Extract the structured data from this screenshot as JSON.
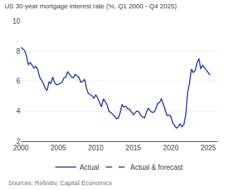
{
  "chart_data": {
    "type": "line",
    "title": "US 30-year mortgage interest rate (%, Q1 2000 - Q4 2025)",
    "annotations": [
      "Sources: Refinitiv, Capital Economics"
    ],
    "xlim": [
      2000.0,
      2026.25
    ],
    "xticks": [
      2000,
      2005,
      2010,
      2015,
      2020,
      2025
    ],
    "ylim": [
      2,
      10
    ],
    "yticks": [
      2,
      4,
      6,
      8,
      10
    ],
    "grid": "y",
    "legend": "bottom",
    "series": [
      {
        "name": "Actual",
        "color": "#2929a8",
        "line_style": "solid",
        "x": [
          2000.0,
          2000.25,
          2000.5,
          2000.75,
          2001.0,
          2001.25,
          2001.5,
          2001.75,
          2002.0,
          2002.25,
          2002.5,
          2002.75,
          2003.0,
          2003.25,
          2003.5,
          2003.75,
          2004.0,
          2004.25,
          2004.5,
          2004.75,
          2005.0,
          2005.25,
          2005.5,
          2005.75,
          2006.0,
          2006.25,
          2006.5,
          2006.75,
          2007.0,
          2007.25,
          2007.5,
          2007.75,
          2008.0,
          2008.25,
          2008.5,
          2008.75,
          2009.0,
          2009.25,
          2009.5,
          2009.75,
          2010.0,
          2010.25,
          2010.5,
          2010.75,
          2011.0,
          2011.25,
          2011.5,
          2011.75,
          2012.0,
          2012.25,
          2012.5,
          2012.75,
          2013.0,
          2013.25,
          2013.5,
          2013.75,
          2014.0,
          2014.25,
          2014.5,
          2014.75,
          2015.0,
          2015.25,
          2015.5,
          2015.75,
          2016.0,
          2016.25,
          2016.5,
          2016.75,
          2017.0,
          2017.25,
          2017.5,
          2017.75,
          2018.0,
          2018.25,
          2018.5,
          2018.75,
          2019.0,
          2019.25,
          2019.5,
          2019.75,
          2020.0,
          2020.25,
          2020.5,
          2020.75,
          2021.0,
          2021.25,
          2021.5,
          2021.75,
          2022.0,
          2022.25,
          2022.5,
          2022.75,
          2023.0,
          2023.25,
          2023.5,
          2023.75,
          2024.0,
          2024.25,
          2024.5,
          2024.75
        ],
        "values": [
          8.24,
          8.14,
          8.03,
          7.68,
          7.07,
          7.23,
          7.02,
          6.86,
          6.97,
          6.77,
          6.27,
          6.08,
          5.85,
          5.52,
          5.38,
          5.96,
          5.84,
          6.27,
          5.89,
          5.76,
          5.79,
          5.86,
          5.94,
          6.22,
          6.27,
          6.63,
          6.48,
          6.28,
          6.22,
          6.44,
          6.34,
          6.25,
          5.92,
          5.98,
          6.12,
          5.53,
          5.18,
          5.1,
          5.02,
          4.86,
          5.08,
          4.88,
          4.57,
          4.28,
          4.81,
          4.65,
          4.43,
          3.99,
          3.92,
          3.8,
          3.66,
          3.5,
          3.53,
          3.91,
          4.46,
          4.27,
          4.33,
          4.16,
          4.13,
          3.96,
          3.77,
          3.91,
          4.02,
          3.94,
          3.72,
          3.62,
          3.54,
          3.93,
          4.2,
          4.02,
          3.92,
          3.94,
          4.14,
          4.53,
          4.57,
          4.83,
          4.45,
          4.06,
          3.72,
          3.74,
          3.66,
          3.23,
          3.05,
          2.87,
          2.97,
          3.15,
          2.96,
          3.12,
          3.76,
          5.27,
          5.87,
          6.79,
          6.57,
          6.71,
          7.18,
          7.5,
          6.81,
          7.06,
          6.89,
          6.72
        ]
      },
      {
        "name": "Actual & forecast",
        "color": "#2929a8",
        "line_style": "dashed",
        "x": [
          2024.75,
          2025.0,
          2025.25,
          2025.5,
          2025.75
        ],
        "values": [
          6.72,
          6.55,
          6.35,
          6.18,
          6.05
        ]
      }
    ]
  }
}
